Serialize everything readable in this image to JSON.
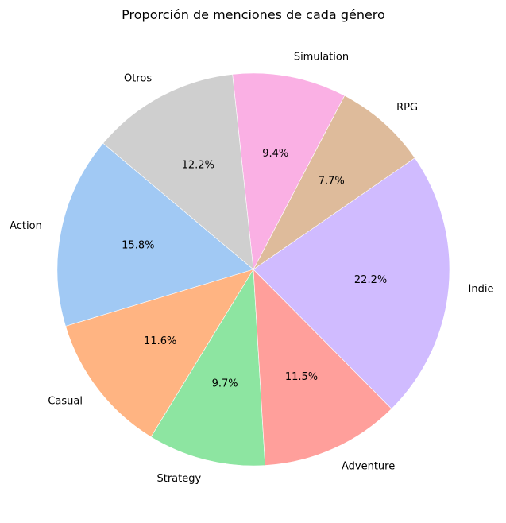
{
  "chart_data": {
    "type": "pie",
    "title": "Proporción de menciones de cada género",
    "categories": [
      "Action",
      "Casual",
      "Strategy",
      "Adventure",
      "Indie",
      "RPG",
      "Simulation",
      "Otros"
    ],
    "values": [
      15.8,
      11.6,
      9.7,
      11.5,
      22.2,
      7.7,
      9.4,
      12.2
    ],
    "value_labels": [
      "15.8%",
      "11.6%",
      "9.7%",
      "11.5%",
      "22.2%",
      "7.7%",
      "9.4%",
      "12.2%"
    ],
    "colors": [
      "#a1c9f4",
      "#ffb482",
      "#8de5a1",
      "#ff9f9b",
      "#d0bbff",
      "#debb9b",
      "#fab0e4",
      "#cfcfcf"
    ],
    "start_angle_deg": 140,
    "direction": "counterclockwise"
  }
}
